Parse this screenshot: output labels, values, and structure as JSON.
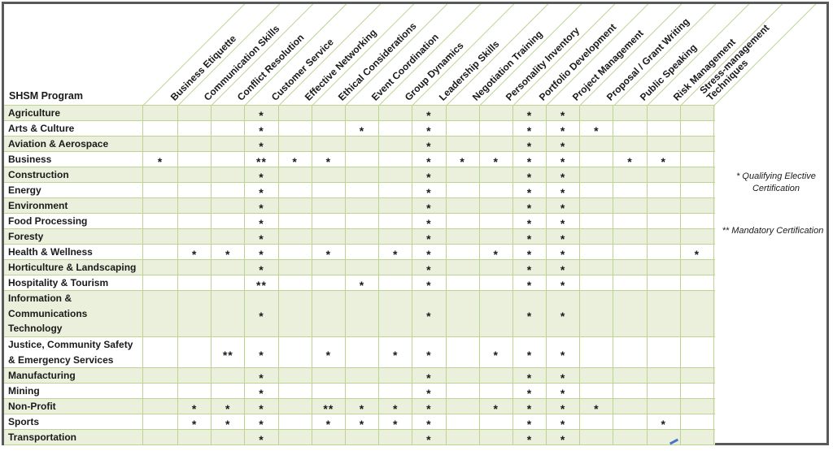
{
  "corner": {
    "label": "SHSM Program"
  },
  "legend": {
    "qualifying": "* Qualifying Elective\nCertification",
    "mandatory": "** Mandatory Certification"
  },
  "colors": {
    "row_shade_green": "#eaf0dc",
    "grid_line_green": "#bcd392",
    "outer_frame_gray": "#58595b",
    "text_black": "#1a1a1a",
    "artifact_blue": "#4a74c9"
  },
  "chart_data": {
    "type": "table",
    "title": "SHSM Program certification matrix",
    "corner_header": "SHSM Program",
    "mark_legend": {
      "*": "Qualifying Elective Certification",
      "**": "Mandatory Certification"
    },
    "columns": [
      "Business Etiquette",
      "Communication Skills",
      "Conflict Resolution",
      "Customer Service",
      "Effective Networking",
      "Ethical Considerations",
      "Event Coordination",
      "Group Dynamics",
      "Leadership Skills",
      "Negotiation Training",
      "Personality Inventory",
      "Portfolio Development",
      "Project Management",
      "Proposal / Grant Writing",
      "Public Speaking",
      "Risk Management",
      "Stress-management\nTechniques"
    ],
    "rows": [
      {
        "label": "Agriculture",
        "marks": {
          "3": "*",
          "8": "*",
          "11": "*",
          "12": "*"
        }
      },
      {
        "label": "Arts & Culture",
        "marks": {
          "3": "*",
          "6": "*",
          "8": "*",
          "11": "*",
          "12": "*",
          "13": "*"
        }
      },
      {
        "label": "Aviation & Aerospace",
        "marks": {
          "3": "*",
          "8": "*",
          "11": "*",
          "12": "*"
        }
      },
      {
        "label": "Business",
        "marks": {
          "0": "*",
          "3": "**",
          "4": "*",
          "5": "*",
          "8": "*",
          "9": "*",
          "10": "*",
          "11": "*",
          "12": "*",
          "14": "*",
          "15": "*"
        }
      },
      {
        "label": "Construction",
        "marks": {
          "3": "*",
          "8": "*",
          "11": "*",
          "12": "*"
        }
      },
      {
        "label": "Energy",
        "marks": {
          "3": "*",
          "8": "*",
          "11": "*",
          "12": "*"
        }
      },
      {
        "label": "Environment",
        "marks": {
          "3": "*",
          "8": "*",
          "11": "*",
          "12": "*"
        }
      },
      {
        "label": "Food Processing",
        "marks": {
          "3": "*",
          "8": "*",
          "11": "*",
          "12": "*"
        }
      },
      {
        "label": "Foresty",
        "marks": {
          "3": "*",
          "8": "*",
          "11": "*",
          "12": "*"
        }
      },
      {
        "label": "Health & Wellness",
        "marks": {
          "1": "*",
          "2": "*",
          "3": "*",
          "5": "*",
          "7": "*",
          "8": "*",
          "10": "*",
          "11": "*",
          "12": "*",
          "16": "*"
        }
      },
      {
        "label": "Horticulture & Landscaping",
        "marks": {
          "3": "*",
          "8": "*",
          "11": "*",
          "12": "*"
        }
      },
      {
        "label": "Hospitality & Tourism",
        "marks": {
          "3": "**",
          "6": "*",
          "8": "*",
          "11": "*",
          "12": "*"
        }
      },
      {
        "label": "Information &\nCommunications\nTechnology",
        "marks": {
          "3": "*",
          "8": "*",
          "11": "*",
          "12": "*"
        }
      },
      {
        "label": "Justice, Community Safety\n& Emergency Services",
        "marks": {
          "2": "**",
          "3": "*",
          "5": "*",
          "7": "*",
          "8": "*",
          "10": "*",
          "11": "*",
          "12": "*"
        }
      },
      {
        "label": "Manufacturing",
        "marks": {
          "3": "*",
          "8": "*",
          "11": "*",
          "12": "*"
        }
      },
      {
        "label": "Mining",
        "marks": {
          "3": "*",
          "8": "*",
          "11": "*",
          "12": "*"
        }
      },
      {
        "label": "Non-Profit",
        "marks": {
          "1": "*",
          "2": "*",
          "3": "*",
          "5": "**",
          "6": "*",
          "7": "*",
          "8": "*",
          "10": "*",
          "11": "*",
          "12": "*",
          "13": "*"
        }
      },
      {
        "label": "Sports",
        "marks": {
          "1": "*",
          "2": "*",
          "3": "*",
          "5": "*",
          "6": "*",
          "7": "*",
          "8": "*",
          "11": "*",
          "12": "*",
          "15": "*"
        }
      },
      {
        "label": "Transportation",
        "marks": {
          "3": "*",
          "8": "*",
          "11": "*",
          "12": "*"
        }
      }
    ]
  }
}
